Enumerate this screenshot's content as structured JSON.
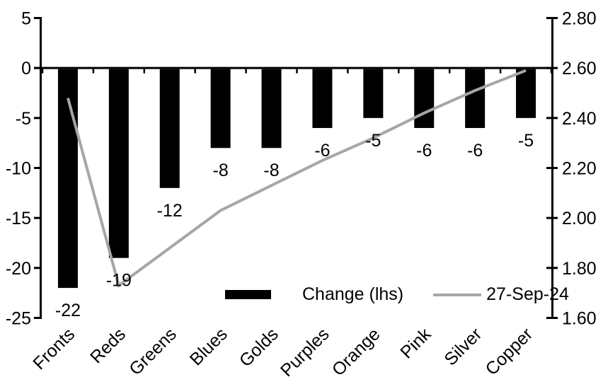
{
  "chart_data": {
    "type": "bar",
    "subtype": "bar-line-combo-dual-axis",
    "title": "",
    "xlabel": "",
    "ylabel": "",
    "categories": [
      "Fronts",
      "Reds",
      "Greens",
      "Blues",
      "Golds",
      "Purples",
      "Orange",
      "Pink",
      "Silver",
      "Copper"
    ],
    "series": [
      {
        "name": "Change (lhs)",
        "type": "bar",
        "axis": "left",
        "color": "#000000",
        "values": [
          -22,
          -19,
          -12,
          -8,
          -8,
          -6,
          -5,
          -6,
          -6,
          -5
        ],
        "data_labels": [
          "-22",
          "-19",
          "-12",
          "-8",
          "-8",
          "-6",
          "-5",
          "-6",
          "-6",
          "-5"
        ]
      },
      {
        "name": "27-Sep-24",
        "type": "line",
        "axis": "right",
        "color": "#a6a6a6",
        "values": [
          2.48,
          1.73,
          1.88,
          2.03,
          2.13,
          2.23,
          2.32,
          2.42,
          2.51,
          2.59
        ]
      }
    ],
    "left_axis": {
      "min": -25,
      "max": 5,
      "step": 5,
      "ticks": [
        "5",
        "0",
        "-5",
        "-10",
        "-15",
        "-20",
        "-25"
      ]
    },
    "right_axis": {
      "min": 1.6,
      "max": 2.8,
      "step": 0.2,
      "ticks": [
        "2.80",
        "2.60",
        "2.40",
        "2.20",
        "2.00",
        "1.80",
        "1.60"
      ]
    },
    "legend": {
      "position": "bottom-inside",
      "entries": [
        "Change (lhs)",
        "27-Sep-24"
      ]
    },
    "grid": "off",
    "background": "#ffffff"
  }
}
